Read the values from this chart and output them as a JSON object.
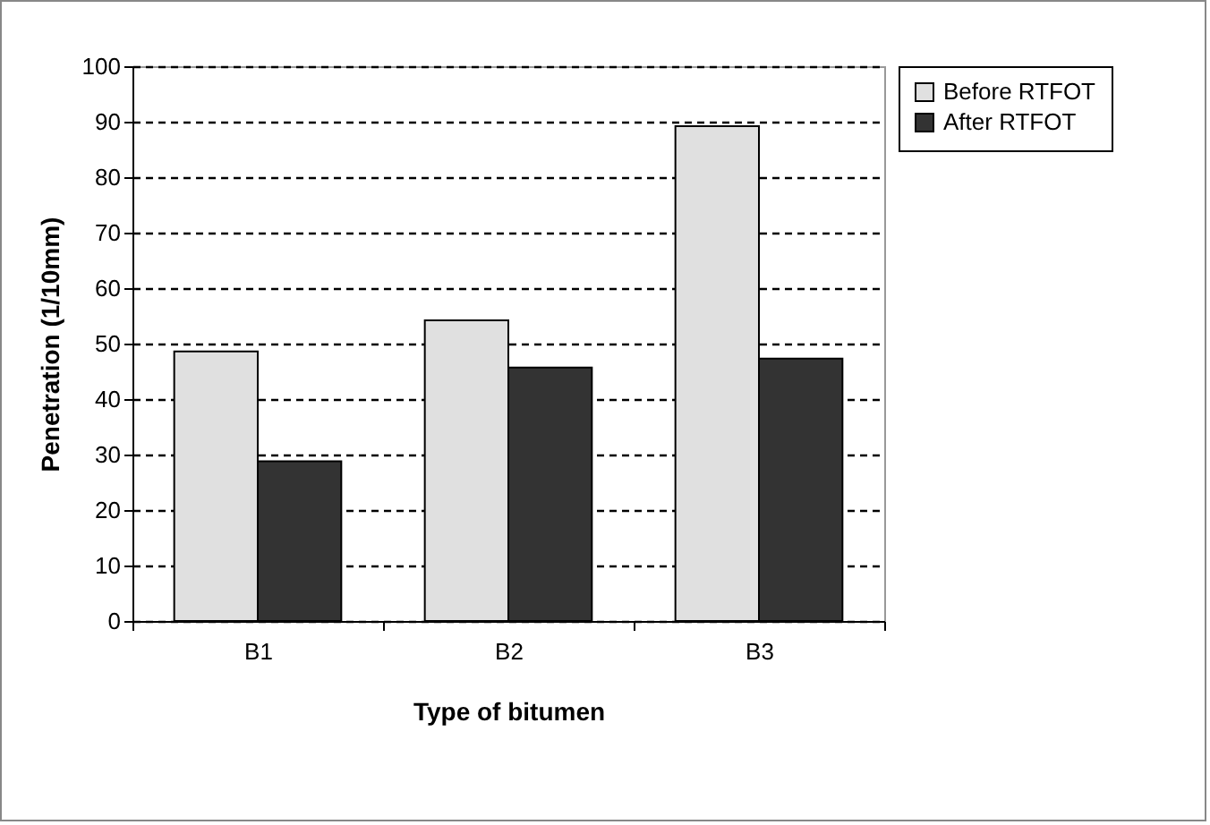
{
  "chart_data": {
    "type": "bar",
    "xlabel": "Type of bitumen",
    "ylabel": "Penetration (1/10mm)",
    "categories": [
      "B1",
      "B2",
      "B3"
    ],
    "series": [
      {
        "name": "Before RTFOT",
        "color": "#e0e0e0",
        "values": [
          48.6,
          54.2,
          89.2
        ]
      },
      {
        "name": "After RTFOT",
        "color": "#333333",
        "values": [
          28.8,
          45.7,
          47.3
        ]
      }
    ],
    "ylim": [
      0,
      100
    ],
    "yticks": [
      0,
      10,
      20,
      30,
      40,
      50,
      60,
      70,
      80,
      90,
      100
    ],
    "grid": "y",
    "legend": "right"
  }
}
